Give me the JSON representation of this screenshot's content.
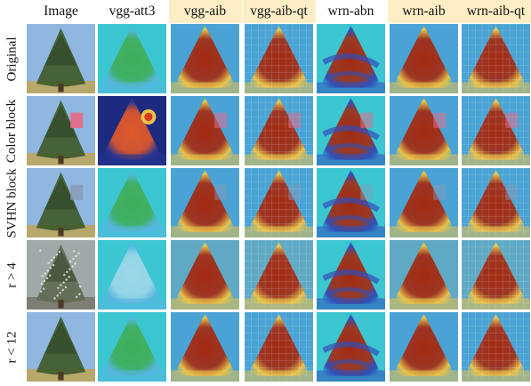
{
  "figure": {
    "columns": [
      {
        "label": "Image",
        "highlight": false
      },
      {
        "label": "vgg-att3",
        "highlight": false
      },
      {
        "label": "vgg-aib",
        "highlight": true
      },
      {
        "label": "vgg-aib-qt",
        "highlight": true
      },
      {
        "label": "wrn-abn",
        "highlight": false
      },
      {
        "label": "wrn-aib",
        "highlight": true
      },
      {
        "label": "wrn-aib-qt",
        "highlight": true
      }
    ],
    "rows": [
      {
        "label": "Original"
      },
      {
        "label": "Color block"
      },
      {
        "label": "SVHN block"
      },
      {
        "label": "r > 4"
      },
      {
        "label": "r < 12"
      }
    ],
    "colors": {
      "highlight": "#fdeec6",
      "tree_green": "#3f5a2c",
      "sky_blue": "#8fb7df",
      "heat_red": "#a42a12",
      "heat_yellow": "#e8c24a",
      "heat_cyan": "#3cc6d2",
      "heat_blue": "#3050b8",
      "pink_block": "#e0708c"
    }
  }
}
